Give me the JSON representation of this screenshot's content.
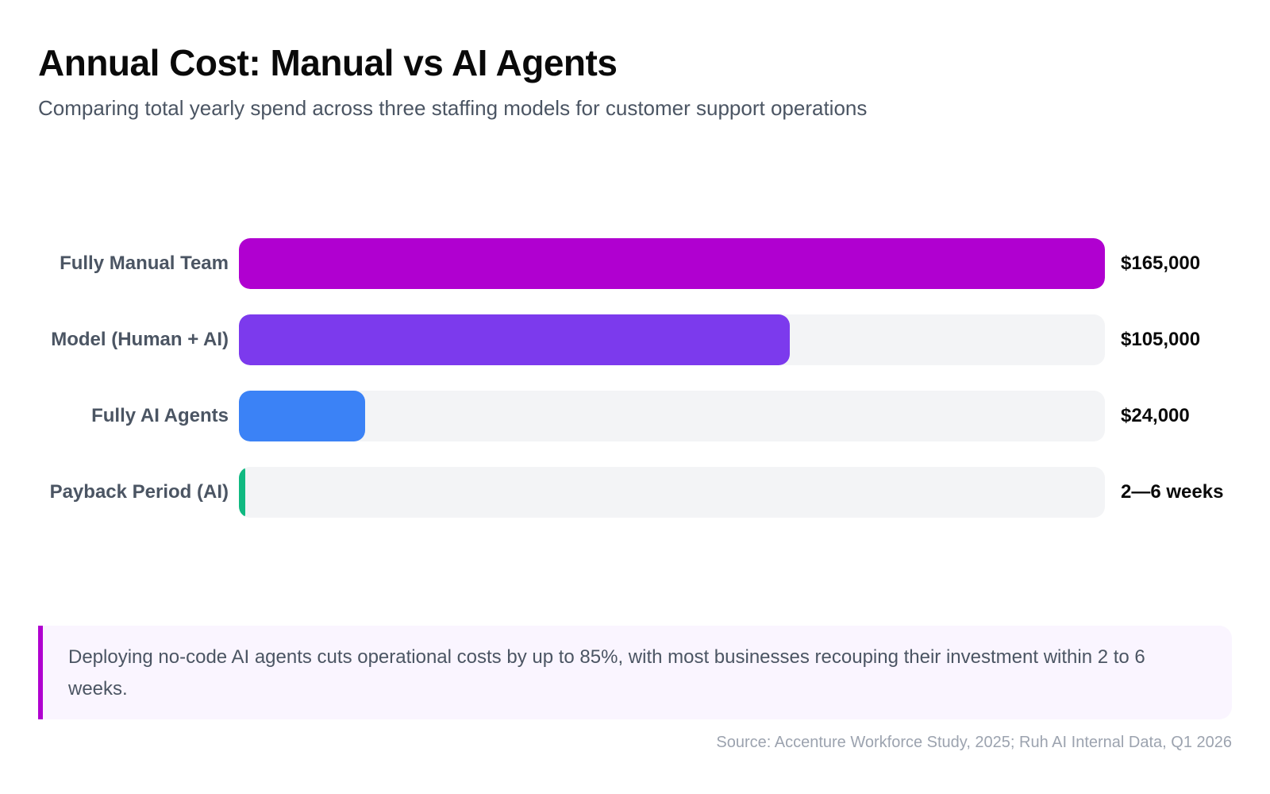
{
  "chart_data": {
    "type": "bar",
    "orientation": "horizontal",
    "title": "Annual Cost: Manual vs AI Agents",
    "subtitle": "Comparing total yearly spend across three staffing models for customer support operations",
    "categories": [
      "Fully Manual Team",
      "Model (Human + AI)",
      "Fully AI Agents",
      "Payback Period (AI)"
    ],
    "values": [
      165000,
      105000,
      24000,
      null
    ],
    "value_labels": [
      "$165,000",
      "$105,000",
      "$24,000",
      "2—6 weeks"
    ],
    "fill_fraction": [
      1.0,
      0.636,
      0.145,
      0.007
    ],
    "colors": [
      "#b000d0",
      "#7c3aed",
      "#3b82f6",
      "#10b981"
    ],
    "track_color": "#f3f4f6",
    "xlim": [
      0,
      165000
    ],
    "grid": false,
    "xlabel": "",
    "ylabel": ""
  },
  "callout": {
    "text": "Deploying no-code AI agents cuts operational costs by up to 85%, with most businesses recouping their investment within 2 to 6 weeks.",
    "accent_color": "#b000d0"
  },
  "source": "Source: Accenture Workforce Study, 2025; Ruh AI Internal Data, Q1 2026"
}
